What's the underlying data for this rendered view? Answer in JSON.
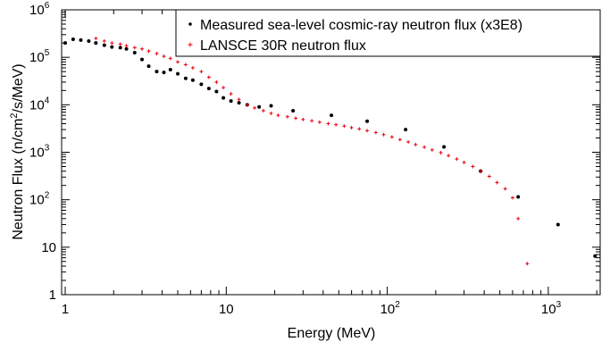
{
  "chart_data": {
    "type": "scatter",
    "title": "",
    "xlabel": "Energy (MeV)",
    "ylabel": "Neutron Flux (n/cm²/s/MeV)",
    "ylabel_parts": {
      "before": "Neutron Flux (n/cm",
      "sup": "2",
      "after": "/s/MeV)"
    },
    "x_scale": "log",
    "y_scale": "log",
    "xlim": [
      0.95,
      2100
    ],
    "ylim": [
      1,
      1000000
    ],
    "grid": false,
    "legend_position": "top-right",
    "x_ticks": [
      {
        "value": 1,
        "base": "1",
        "exp": ""
      },
      {
        "value": 10,
        "base": "10",
        "exp": ""
      },
      {
        "value": 100,
        "base": "10",
        "exp": "2"
      },
      {
        "value": 1000,
        "base": "10",
        "exp": "3"
      }
    ],
    "y_ticks": [
      {
        "value": 1,
        "base": "1",
        "exp": ""
      },
      {
        "value": 10,
        "base": "10",
        "exp": ""
      },
      {
        "value": 100,
        "base": "10",
        "exp": "2"
      },
      {
        "value": 1000,
        "base": "10",
        "exp": "3"
      },
      {
        "value": 10000,
        "base": "10",
        "exp": "4"
      },
      {
        "value": 100000,
        "base": "10",
        "exp": "5"
      },
      {
        "value": 1000000,
        "base": "10",
        "exp": "6"
      }
    ],
    "series": [
      {
        "name": "Measured sea-level cosmic-ray neutron flux (x3E8)",
        "marker": "dot",
        "color": "#000000",
        "points": [
          [
            1.0,
            200000
          ],
          [
            1.12,
            240000
          ],
          [
            1.25,
            230000
          ],
          [
            1.4,
            220000
          ],
          [
            1.55,
            200000
          ],
          [
            1.75,
            180000
          ],
          [
            1.95,
            165000
          ],
          [
            2.2,
            160000
          ],
          [
            2.4,
            150000
          ],
          [
            2.7,
            125000
          ],
          [
            3.0,
            90000
          ],
          [
            3.3,
            65000
          ],
          [
            3.7,
            50000
          ],
          [
            4.1,
            48000
          ],
          [
            4.5,
            55000
          ],
          [
            5.0,
            45000
          ],
          [
            5.6,
            36000
          ],
          [
            6.2,
            33000
          ],
          [
            7.0,
            27000
          ],
          [
            7.8,
            22000
          ],
          [
            8.7,
            19000
          ],
          [
            9.6,
            14000
          ],
          [
            10.7,
            12000
          ],
          [
            12,
            11000
          ],
          [
            13.5,
            10000
          ],
          [
            16,
            9000
          ],
          [
            19,
            9500
          ],
          [
            26,
            7500
          ],
          [
            45,
            6000
          ],
          [
            75,
            4500
          ],
          [
            130,
            3000
          ],
          [
            225,
            1300
          ],
          [
            380,
            400
          ],
          [
            650,
            115
          ],
          [
            1150,
            30
          ],
          [
            1950,
            6.5
          ]
        ]
      },
      {
        "name": "LANSCE 30R neutron flux",
        "marker": "plus",
        "color": "#e8000b",
        "points": [
          [
            1.55,
            250000
          ],
          [
            1.75,
            220000
          ],
          [
            1.95,
            200000
          ],
          [
            2.2,
            190000
          ],
          [
            2.4,
            175000
          ],
          [
            2.7,
            160000
          ],
          [
            3.0,
            150000
          ],
          [
            3.3,
            135000
          ],
          [
            3.7,
            120000
          ],
          [
            4.1,
            105000
          ],
          [
            4.5,
            95000
          ],
          [
            5.0,
            80000
          ],
          [
            5.6,
            70000
          ],
          [
            6.2,
            60000
          ],
          [
            7.0,
            50000
          ],
          [
            7.8,
            38000
          ],
          [
            8.7,
            30000
          ],
          [
            9.6,
            23000
          ],
          [
            10.7,
            17000
          ],
          [
            12,
            13000
          ],
          [
            13.5,
            10000
          ],
          [
            15,
            8600
          ],
          [
            17,
            7500
          ],
          [
            19,
            6600
          ],
          [
            21,
            6000
          ],
          [
            24,
            5600
          ],
          [
            27,
            5200
          ],
          [
            30,
            4900
          ],
          [
            34,
            4600
          ],
          [
            38,
            4300
          ],
          [
            43,
            4000
          ],
          [
            48,
            3800
          ],
          [
            54,
            3550
          ],
          [
            60,
            3300
          ],
          [
            67,
            3100
          ],
          [
            75,
            2850
          ],
          [
            85,
            2600
          ],
          [
            95,
            2350
          ],
          [
            107,
            2100
          ],
          [
            120,
            1850
          ],
          [
            135,
            1650
          ],
          [
            150,
            1450
          ],
          [
            170,
            1280
          ],
          [
            190,
            1120
          ],
          [
            215,
            980
          ],
          [
            240,
            850
          ],
          [
            270,
            720
          ],
          [
            300,
            610
          ],
          [
            340,
            500
          ],
          [
            380,
            400
          ],
          [
            430,
            310
          ],
          [
            480,
            230
          ],
          [
            540,
            170
          ],
          [
            600,
            110
          ],
          [
            650,
            40
          ],
          [
            740,
            4.5
          ]
        ]
      }
    ]
  }
}
